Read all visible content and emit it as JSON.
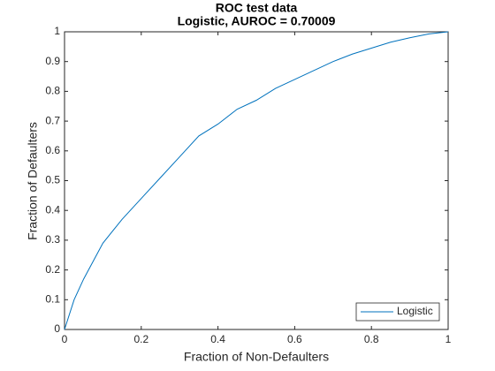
{
  "chart_data": {
    "type": "line",
    "title": "ROC test data",
    "subtitle": "Logistic, AUROC = 0.70009",
    "x_label": "Fraction of Non-Defaulters",
    "y_label": "Fraction of Defaulters",
    "x": [
      0,
      0.025,
      0.05,
      0.075,
      0.1,
      0.15,
      0.2,
      0.25,
      0.3,
      0.35,
      0.4,
      0.45,
      0.5,
      0.55,
      0.6,
      0.65,
      0.7,
      0.75,
      0.8,
      0.85,
      0.9,
      0.95,
      1
    ],
    "series": [
      {
        "name": "Logistic",
        "color": "#0072bd",
        "values": [
          0,
          0.1,
          0.17,
          0.23,
          0.29,
          0.37,
          0.44,
          0.51,
          0.58,
          0.65,
          0.69,
          0.74,
          0.77,
          0.81,
          0.84,
          0.87,
          0.9,
          0.925,
          0.945,
          0.965,
          0.98,
          0.993,
          1
        ]
      }
    ],
    "xlim": [
      0,
      1
    ],
    "ylim": [
      0,
      1
    ],
    "xticks": [
      0,
      0.2,
      0.4,
      0.6,
      0.8,
      1
    ],
    "yticks": [
      0,
      0.1,
      0.2,
      0.3,
      0.4,
      0.5,
      0.6,
      0.7,
      0.8,
      0.9,
      1
    ],
    "grid": false,
    "legend": "southeast"
  }
}
